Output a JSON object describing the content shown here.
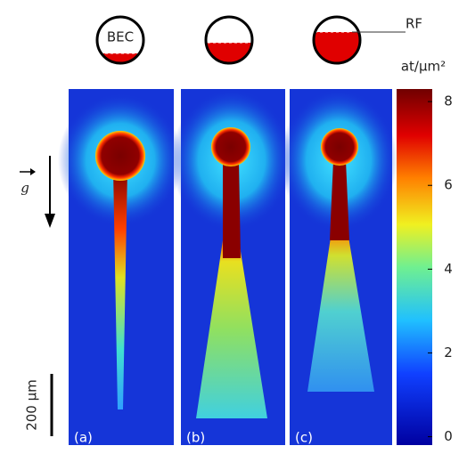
{
  "icons": {
    "bec": "BEC",
    "rf": "RF"
  },
  "gravity_label": "g",
  "scale_bar": {
    "label": "200 µm"
  },
  "panels": [
    {
      "label": "(a)"
    },
    {
      "label": "(b)"
    },
    {
      "label": "(c)"
    }
  ],
  "colorbar": {
    "label": "at/µm²",
    "lim": [
      -0.2,
      8.3
    ],
    "ticks": [
      0,
      2,
      4,
      6,
      8
    ]
  }
}
